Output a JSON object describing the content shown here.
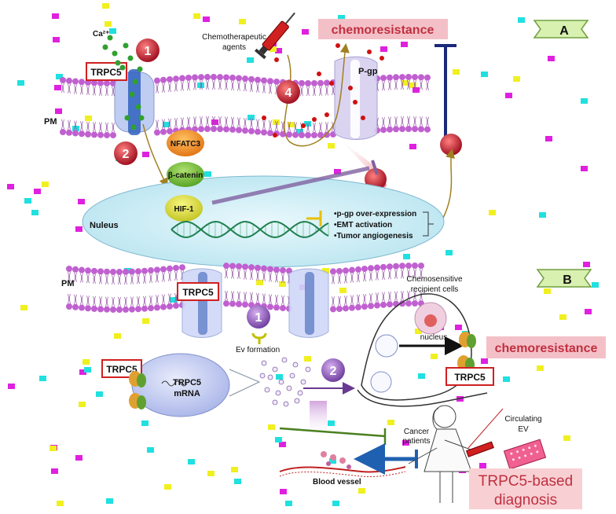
{
  "panel_a": {
    "badge": "A",
    "ion_label": "Ca²⁺",
    "channel_label": "TRPC5",
    "membrane_label": "PM",
    "drug_label_line1": "Chemotherapeutic",
    "drug_label_line2": "agents",
    "pump_label": "P-gp",
    "outcome_label": "chemoresistance",
    "factor_1": "NFATC3",
    "factor_2": "β-catenin",
    "factor_3": "HIF-1",
    "nucleus_label": "Nuleus",
    "effects": [
      "•p-gp over-expression",
      "•EMT activation",
      "•Tumor angiogenesis"
    ],
    "steps": [
      "1",
      "2",
      "4"
    ]
  },
  "panel_b": {
    "badge": "B",
    "membrane_label": "PM",
    "channel_label": "TRPC5",
    "step_1": "1",
    "step_2": "2",
    "ev_label": "Ev formation",
    "cargo_protein": "TRPC5",
    "cargo_mrna_line1": "TRPC5",
    "cargo_mrna_line2": "mRNA",
    "recipient_line1": "Chemosensitive",
    "recipient_line2": "recipient cells",
    "recipient_nucleus": "nucleus",
    "recipient_channel": "TRPC5",
    "outcome_label": "chemoresistance",
    "patients_line1": "Cancer",
    "patients_line2": "patients",
    "circulating_line1": "Circulating",
    "circulating_line2": "EV",
    "vessel_label": "Blood vessel",
    "diagnosis_line1": "TRPC5-based",
    "diagnosis_line2": "diagnosis"
  },
  "colors": {
    "membrane_head": "#c060d0",
    "channel": "#b8c8f0",
    "step_red": "#c0283a",
    "step_purple": "#9060b8",
    "label_pink": "#f4c0c8",
    "arrow_gold": "#a08020",
    "arrow_navy": "#1a2a7a",
    "arrow_purple": "#8060a0",
    "arrow_blue": "#2060b0",
    "arrow_green": "#4a8020"
  }
}
